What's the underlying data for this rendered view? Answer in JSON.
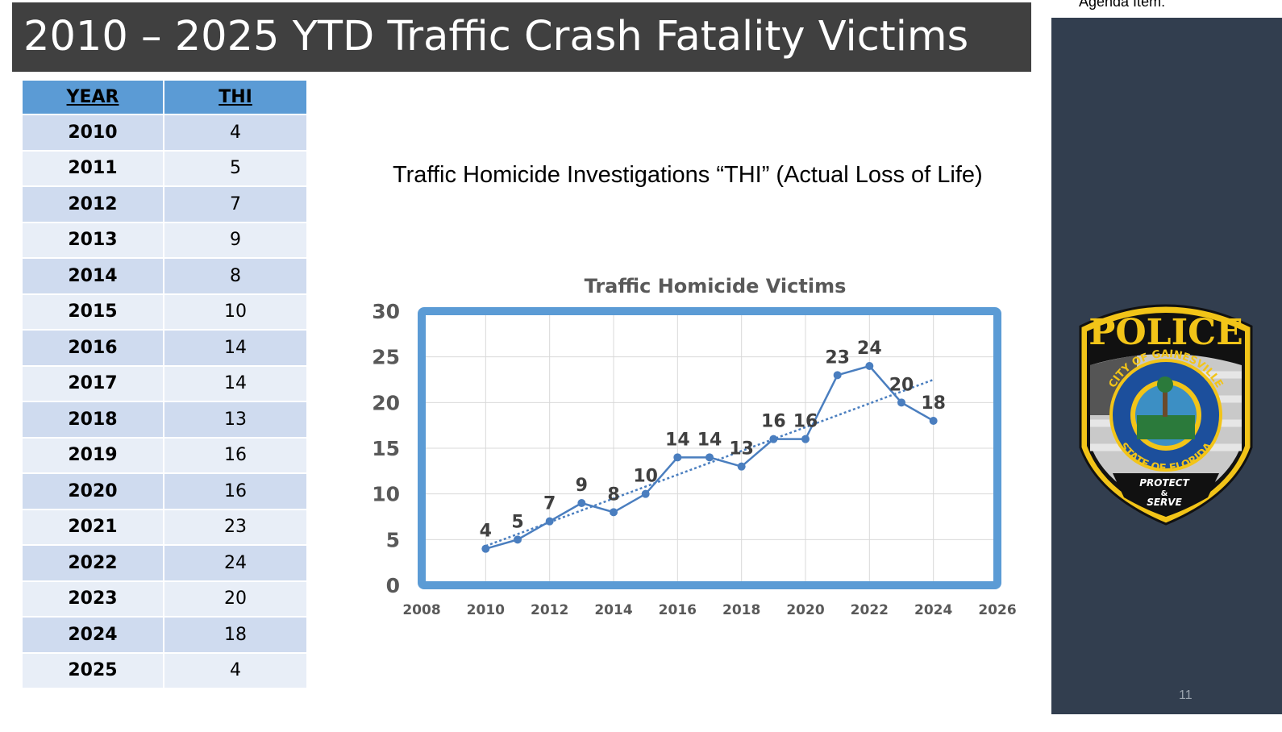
{
  "slide": {
    "title": "2010 – 2025 YTD Traffic Crash Fatality Victims",
    "agenda_label": "Agenda Item:",
    "page_number": "11",
    "chart_heading": "Traffic Homicide Investigations “THI” (Actual Loss of Life)"
  },
  "table": {
    "headers": [
      "YEAR",
      "THI"
    ],
    "rows": [
      [
        "2010",
        "4"
      ],
      [
        "2011",
        "5"
      ],
      [
        "2012",
        "7"
      ],
      [
        "2013",
        "9"
      ],
      [
        "2014",
        "8"
      ],
      [
        "2015",
        "10"
      ],
      [
        "2016",
        "14"
      ],
      [
        "2017",
        "14"
      ],
      [
        "2018",
        "13"
      ],
      [
        "2019",
        "16"
      ],
      [
        "2020",
        "16"
      ],
      [
        "2021",
        "23"
      ],
      [
        "2022",
        "24"
      ],
      [
        "2023",
        "20"
      ],
      [
        "2024",
        "18"
      ],
      [
        "2025",
        "4"
      ]
    ]
  },
  "badge": {
    "top_text": "POLICE",
    "ring_top": "CITY OF GAINESVILLE",
    "ring_bottom": "STATE OF FLORIDA",
    "motto_line1": "PROTECT",
    "motto_line2": "&",
    "motto_line3": "SERVE"
  },
  "colors": {
    "title_bar": "#404040",
    "side_panel": "#323e4f",
    "table_header": "#5b9bd5",
    "row_dark": "#cfdbef",
    "row_light": "#e8eef7",
    "series": "#4a7ebf",
    "plot_border": "#5b9bd5"
  },
  "chart_data": {
    "type": "scatter",
    "title": "Traffic Homicide Victims",
    "xlabel": "",
    "ylabel": "",
    "xlim": [
      2008,
      2026
    ],
    "ylim": [
      0,
      30
    ],
    "xticks": [
      2008,
      2010,
      2012,
      2014,
      2016,
      2018,
      2020,
      2022,
      2024,
      2026
    ],
    "yticks": [
      0,
      5,
      10,
      15,
      20,
      25,
      30
    ],
    "grid": true,
    "legend": "none",
    "trendline": "linear, dotted",
    "series": [
      {
        "x": [
          2010,
          2011,
          2012,
          2013,
          2014,
          2015,
          2016,
          2017,
          2018,
          2019,
          2020,
          2021,
          2022,
          2023,
          2024
        ],
        "y": [
          4,
          5,
          7,
          9,
          8,
          10,
          14,
          14,
          13,
          16,
          16,
          23,
          24,
          20,
          18
        ]
      }
    ]
  }
}
